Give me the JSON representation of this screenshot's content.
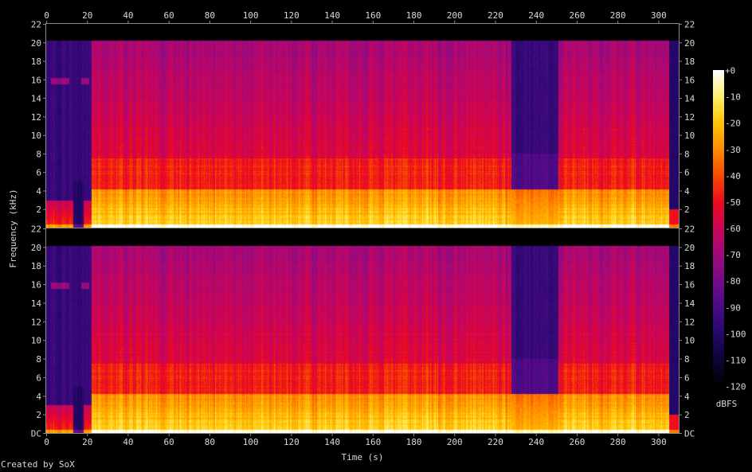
{
  "chart_data": {
    "type": "heatmap",
    "title": "",
    "xlabel": "Time (s)",
    "ylabel": "Frequency (kHz)",
    "xlim": [
      0,
      310
    ],
    "x_ticks": [
      0,
      20,
      40,
      60,
      80,
      100,
      120,
      140,
      160,
      180,
      200,
      220,
      240,
      260,
      280,
      300
    ],
    "channels": [
      {
        "ylim": [
          0,
          22
        ],
        "y_ticks": [
          "2",
          "4",
          "6",
          "8",
          "10",
          "12",
          "14",
          "16",
          "18",
          "20",
          "22"
        ]
      },
      {
        "ylim": [
          0,
          22
        ],
        "y_ticks": [
          "DC",
          "2",
          "4",
          "6",
          "8",
          "10",
          "12",
          "14",
          "16",
          "18",
          "20",
          "22"
        ]
      }
    ],
    "colorbar": {
      "label": "dBFS",
      "range": [
        -120,
        0
      ],
      "ticks": [
        "+0",
        "-10",
        "-20",
        "-30",
        "-40",
        "-50",
        "-60",
        "-70",
        "-80",
        "-90",
        "-100",
        "-110",
        "-120"
      ],
      "colors": [
        "#000000",
        "#0c0438",
        "#24086a",
        "#4a0a86",
        "#740c8a",
        "#a00a7c",
        "#cc0458",
        "#ee0a1c",
        "#f84a00",
        "#ff8c00",
        "#ffc400",
        "#fff06a",
        "#ffffff"
      ]
    },
    "segments": [
      {
        "start": 0,
        "end": 22,
        "description_level": "quiet",
        "low_band_db": -65,
        "high_band_db": -95
      },
      {
        "start": 22,
        "end": 228,
        "low_band_db": -25,
        "mid_band_db": -45,
        "high_band_db": -60,
        "cutoff_khz": 20
      },
      {
        "start": 228,
        "end": 251,
        "low_band_db": -35,
        "high_band_db": -95,
        "cutoff_khz": 4
      },
      {
        "start": 251,
        "end": 305,
        "low_band_db": -25,
        "mid_band_db": -45,
        "high_band_db": -60,
        "cutoff_khz": 20
      },
      {
        "start": 305,
        "end": 310,
        "low_band_db": -60,
        "high_band_db": -110
      }
    ]
  },
  "footer": {
    "credit": "Created by SoX"
  }
}
